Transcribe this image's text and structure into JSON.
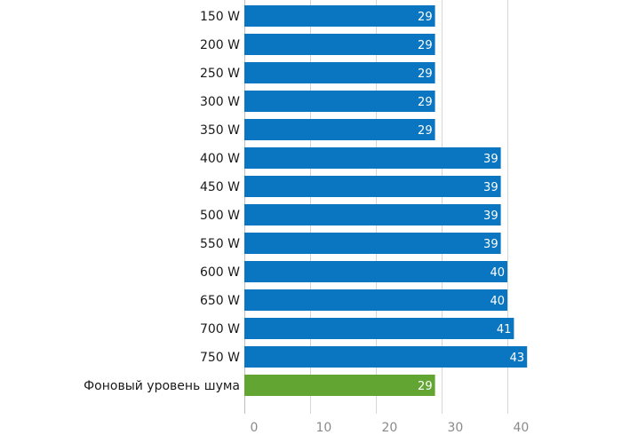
{
  "chart_data": {
    "type": "bar",
    "orientation": "horizontal",
    "categories": [
      "150 W",
      "200 W",
      "250 W",
      "300 W",
      "350 W",
      "400 W",
      "450 W",
      "500 W",
      "550 W",
      "600 W",
      "650 W",
      "700 W",
      "750 W",
      "Фоновый уровень шума"
    ],
    "values": [
      29,
      29,
      29,
      29,
      29,
      39,
      39,
      39,
      39,
      40,
      40,
      41,
      43,
      29
    ],
    "value_labels": [
      "29",
      "29",
      "29",
      "29",
      "29",
      "39",
      "39",
      "39",
      "39",
      "40",
      "40",
      "41",
      "43",
      "29"
    ],
    "bar_colors": [
      "#0a75c0",
      "#0a75c0",
      "#0a75c0",
      "#0a75c0",
      "#0a75c0",
      "#0a75c0",
      "#0a75c0",
      "#0a75c0",
      "#0a75c0",
      "#0a75c0",
      "#0a75c0",
      "#0a75c0",
      "#0a75c0",
      "#63a533"
    ],
    "xticks": [
      0,
      10,
      20,
      30,
      40
    ],
    "xtick_labels": [
      "0",
      "10",
      "20",
      "30",
      "40"
    ],
    "xlim": [
      0,
      43
    ],
    "grid": true,
    "title": "",
    "xlabel": "",
    "ylabel": ""
  }
}
